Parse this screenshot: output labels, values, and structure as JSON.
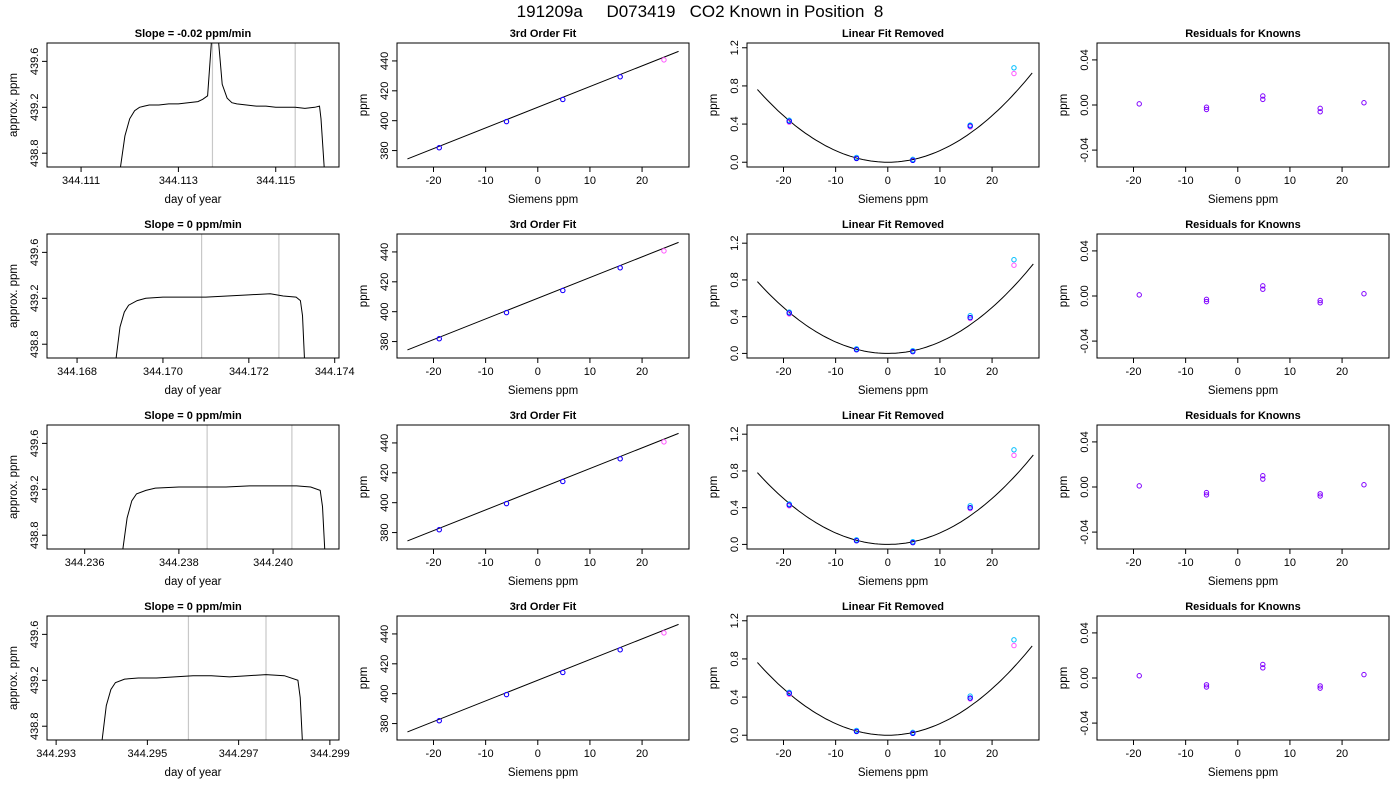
{
  "figure": {
    "title": "191209a     D073419   CO2 Known in Position  8",
    "colors": {
      "trace": "#000000",
      "vline": "#c8c8c8",
      "cyan": "#00bfff",
      "magenta": "#ff55ff",
      "blue": "#0000ff",
      "purple": "#8000ff"
    }
  },
  "chart_data": [
    {
      "type": "line",
      "row": 1,
      "title": "Slope =  -0.02  ppm/min",
      "xlabel": "day of year",
      "ylabel": "approx. ppm",
      "xlim": [
        344.1103,
        344.1163
      ],
      "ylim": [
        438.68,
        439.76
      ],
      "xticks": [
        344.111,
        344.113,
        344.115
      ],
      "xtick_labels": [
        "344.111",
        "344.113",
        "344.115"
      ],
      "yticks": [
        438.8,
        439.2,
        439.6
      ],
      "ytick_labels": [
        "438.8",
        "439.2",
        "439.6"
      ],
      "vlines": [
        344.1137,
        344.1154
      ],
      "x": [
        344.1118,
        344.1119,
        344.112,
        344.1121,
        344.1122,
        344.1123,
        344.1124,
        344.1126,
        344.1128,
        344.113,
        344.1132,
        344.1134,
        344.1135,
        344.1136,
        344.1137,
        344.1138,
        344.1139,
        344.114,
        344.1141,
        344.1142,
        344.1144,
        344.1146,
        344.1148,
        344.115,
        344.1152,
        344.1154,
        344.1156,
        344.1158,
        344.1159,
        344.11593,
        344.116
      ],
      "y": [
        438.65,
        438.95,
        439.1,
        439.17,
        439.2,
        439.21,
        439.22,
        439.22,
        439.23,
        439.23,
        439.24,
        439.25,
        439.27,
        439.3,
        439.9,
        439.9,
        439.4,
        439.28,
        439.24,
        439.23,
        439.22,
        439.21,
        439.21,
        439.2,
        439.2,
        439.2,
        439.19,
        439.2,
        439.21,
        439.1,
        438.65
      ]
    },
    {
      "type": "line",
      "row": 2,
      "title": "Slope =  0  ppm/min",
      "xlabel": "day of year",
      "ylabel": "approx. ppm",
      "xlim": [
        344.1673,
        344.1741
      ],
      "ylim": [
        438.68,
        439.76
      ],
      "xticks": [
        344.168,
        344.17,
        344.172,
        344.174
      ],
      "xtick_labels": [
        "344.168",
        "344.170",
        "344.172",
        "344.174"
      ],
      "yticks": [
        438.8,
        439.2,
        439.6
      ],
      "ytick_labels": [
        "438.8",
        "439.2",
        "439.6"
      ],
      "vlines": [
        344.1709,
        344.1727
      ],
      "x": [
        344.1689,
        344.169,
        344.1691,
        344.1692,
        344.1694,
        344.1696,
        344.17,
        344.1705,
        344.171,
        344.1715,
        344.172,
        344.1725,
        344.1728,
        344.1731,
        344.1732,
        344.17325,
        344.1733
      ],
      "y": [
        438.65,
        438.95,
        439.08,
        439.14,
        439.18,
        439.2,
        439.21,
        439.21,
        439.21,
        439.22,
        439.23,
        439.24,
        439.22,
        439.21,
        439.18,
        439.05,
        438.65
      ]
    },
    {
      "type": "line",
      "row": 3,
      "title": "Slope =  0  ppm/min",
      "xlabel": "day of year",
      "ylabel": "approx. ppm",
      "xlim": [
        344.2352,
        344.2414
      ],
      "ylim": [
        438.68,
        439.76
      ],
      "xticks": [
        344.236,
        344.238,
        344.24
      ],
      "xtick_labels": [
        "344.236",
        "344.238",
        "344.240"
      ],
      "yticks": [
        438.8,
        439.2,
        439.6
      ],
      "ytick_labels": [
        "438.8",
        "439.2",
        "439.6"
      ],
      "vlines": [
        344.2386,
        344.2404
      ],
      "x": [
        344.2368,
        344.2369,
        344.237,
        344.2371,
        344.2373,
        344.2375,
        344.238,
        344.2385,
        344.239,
        344.2395,
        344.24,
        344.2405,
        344.2408,
        344.241,
        344.24105,
        344.2411
      ],
      "y": [
        438.65,
        438.95,
        439.1,
        439.16,
        439.19,
        439.21,
        439.22,
        439.22,
        439.22,
        439.23,
        439.23,
        439.23,
        439.22,
        439.19,
        439.05,
        438.65
      ]
    },
    {
      "type": "line",
      "row": 4,
      "title": "Slope =  0  ppm/min",
      "xlabel": "day of year",
      "ylabel": "approx. ppm",
      "xlim": [
        344.2928,
        344.2992
      ],
      "ylim": [
        438.68,
        439.76
      ],
      "xticks": [
        344.293,
        344.295,
        344.297,
        344.299
      ],
      "xtick_labels": [
        "344.293",
        "344.295",
        "344.297",
        "344.299"
      ],
      "yticks": [
        438.8,
        439.2,
        439.6
      ],
      "ytick_labels": [
        "438.8",
        "439.2",
        "439.6"
      ],
      "vlines": [
        344.2959,
        344.2976
      ],
      "x": [
        344.294,
        344.2941,
        344.2942,
        344.2943,
        344.2945,
        344.2948,
        344.2952,
        344.2956,
        344.296,
        344.2964,
        344.2968,
        344.2972,
        344.2976,
        344.298,
        344.2983,
        344.29835,
        344.2984
      ],
      "y": [
        438.65,
        438.98,
        439.12,
        439.18,
        439.21,
        439.22,
        439.22,
        439.23,
        439.24,
        439.24,
        439.23,
        439.24,
        439.25,
        439.24,
        439.2,
        439.05,
        438.65
      ]
    },
    {
      "type": "scatter",
      "row": 1,
      "title": "3rd Order Fit",
      "xlabel": "Siemens ppm",
      "ylabel": "ppm",
      "xlim": [
        -27,
        29
      ],
      "ylim": [
        369,
        452
      ],
      "xticks": [
        -20,
        -10,
        0,
        10,
        20
      ],
      "yticks": [
        380,
        400,
        420,
        440
      ],
      "fit_line": [
        [
          -25,
          374.4
        ],
        [
          27,
          446.4
        ]
      ],
      "series": [
        {
          "color": "magenta",
          "x": [
            -18.9,
            -6.0,
            4.8,
            15.8,
            24.2
          ],
          "y": [
            381.9,
            399.4,
            414.2,
            429.4,
            440.7
          ]
        },
        {
          "color": "blue",
          "x": [
            -18.9,
            -6.0,
            4.8,
            15.8
          ],
          "y": [
            381.9,
            399.4,
            414.2,
            429.4
          ]
        }
      ]
    },
    {
      "type": "scatter",
      "row": 2,
      "title": "3rd Order Fit",
      "xlabel": "Siemens ppm",
      "ylabel": "ppm",
      "xlim": [
        -27,
        29
      ],
      "ylim": [
        369,
        452
      ],
      "xticks": [
        -20,
        -10,
        0,
        10,
        20
      ],
      "yticks": [
        380,
        400,
        420,
        440
      ],
      "fit_line": [
        [
          -25,
          374.4
        ],
        [
          27,
          446.4
        ]
      ],
      "series": [
        {
          "color": "magenta",
          "x": [
            -18.9,
            -6.0,
            4.8,
            15.8,
            24.2
          ],
          "y": [
            381.9,
            399.4,
            414.2,
            429.4,
            440.7
          ]
        },
        {
          "color": "blue",
          "x": [
            -18.9,
            -6.0,
            4.8,
            15.8
          ],
          "y": [
            381.9,
            399.4,
            414.2,
            429.4
          ]
        }
      ]
    },
    {
      "type": "scatter",
      "row": 3,
      "title": "3rd Order Fit",
      "xlabel": "Siemens ppm",
      "ylabel": "ppm",
      "xlim": [
        -27,
        29
      ],
      "ylim": [
        369,
        452
      ],
      "xticks": [
        -20,
        -10,
        0,
        10,
        20
      ],
      "yticks": [
        380,
        400,
        420,
        440
      ],
      "fit_line": [
        [
          -25,
          374.4
        ],
        [
          27,
          446.4
        ]
      ],
      "series": [
        {
          "color": "magenta",
          "x": [
            -18.9,
            -6.0,
            4.8,
            15.8,
            24.2
          ],
          "y": [
            381.9,
            399.4,
            414.2,
            429.4,
            440.7
          ]
        },
        {
          "color": "blue",
          "x": [
            -18.9,
            -6.0,
            4.8,
            15.8
          ],
          "y": [
            381.9,
            399.4,
            414.2,
            429.4
          ]
        }
      ]
    },
    {
      "type": "scatter",
      "row": 4,
      "title": "3rd Order Fit",
      "xlabel": "Siemens ppm",
      "ylabel": "ppm",
      "xlim": [
        -27,
        29
      ],
      "ylim": [
        369,
        452
      ],
      "xticks": [
        -20,
        -10,
        0,
        10,
        20
      ],
      "yticks": [
        380,
        400,
        420,
        440
      ],
      "fit_line": [
        [
          -25,
          374.4
        ],
        [
          27,
          446.4
        ]
      ],
      "series": [
        {
          "color": "magenta",
          "x": [
            -18.9,
            -6.0,
            4.8,
            15.8,
            24.2
          ],
          "y": [
            381.9,
            399.4,
            414.2,
            429.4,
            440.7
          ]
        },
        {
          "color": "blue",
          "x": [
            -18.9,
            -6.0,
            4.8,
            15.8
          ],
          "y": [
            381.9,
            399.4,
            414.2,
            429.4
          ]
        }
      ]
    },
    {
      "type": "scatter",
      "row": 1,
      "title": "Linear Fit Removed",
      "xlabel": "Siemens ppm",
      "ylabel": "ppm",
      "xlim": [
        -27,
        29
      ],
      "ylim": [
        -0.05,
        1.25
      ],
      "xticks": [
        -20,
        -10,
        0,
        10,
        20
      ],
      "yticks": [
        0.0,
        0.4,
        0.8,
        1.2
      ],
      "ytick_labels": [
        "0.0",
        "0.4",
        "0.8",
        "1.2"
      ],
      "curve_coef": 0.00122,
      "curve_xrange": [
        -25,
        27.7
      ],
      "series": [
        {
          "color": "cyan",
          "x": [
            -18.9,
            -6.0,
            4.8,
            15.8,
            24.2
          ],
          "y": [
            0.44,
            0.05,
            0.03,
            0.39,
            0.99
          ]
        },
        {
          "color": "magenta",
          "x": [
            -18.9,
            -6.0,
            4.8,
            15.8,
            24.2
          ],
          "y": [
            0.42,
            0.04,
            0.02,
            0.37,
            0.93
          ]
        },
        {
          "color": "blue",
          "x": [
            -18.9,
            -6.0,
            4.8,
            15.8
          ],
          "y": [
            0.43,
            0.04,
            0.02,
            0.38
          ]
        }
      ]
    },
    {
      "type": "scatter",
      "row": 2,
      "title": "Linear Fit Removed",
      "xlabel": "Siemens ppm",
      "ylabel": "ppm",
      "xlim": [
        -27,
        29
      ],
      "ylim": [
        -0.05,
        1.3
      ],
      "xticks": [
        -20,
        -10,
        0,
        10,
        20
      ],
      "yticks": [
        0.0,
        0.4,
        0.8,
        1.2
      ],
      "ytick_labels": [
        "0.0",
        "0.4",
        "0.8",
        "1.2"
      ],
      "curve_coef": 0.00125,
      "curve_xrange": [
        -25,
        27.9
      ],
      "series": [
        {
          "color": "cyan",
          "x": [
            -18.9,
            -6.0,
            4.8,
            15.8,
            24.2
          ],
          "y": [
            0.45,
            0.05,
            0.03,
            0.41,
            1.02
          ]
        },
        {
          "color": "magenta",
          "x": [
            -18.9,
            -6.0,
            4.8,
            15.8,
            24.2
          ],
          "y": [
            0.43,
            0.04,
            0.02,
            0.38,
            0.96
          ]
        },
        {
          "color": "blue",
          "x": [
            -18.9,
            -6.0,
            4.8,
            15.8
          ],
          "y": [
            0.44,
            0.04,
            0.02,
            0.39
          ]
        }
      ]
    },
    {
      "type": "scatter",
      "row": 3,
      "title": "Linear Fit Removed",
      "xlabel": "Siemens ppm",
      "ylabel": "ppm",
      "xlim": [
        -27,
        29
      ],
      "ylim": [
        -0.05,
        1.3
      ],
      "xticks": [
        -20,
        -10,
        0,
        10,
        20
      ],
      "yticks": [
        0.0,
        0.4,
        0.8,
        1.2
      ],
      "ytick_labels": [
        "0.0",
        "0.4",
        "0.8",
        "1.2"
      ],
      "curve_coef": 0.00125,
      "curve_xrange": [
        -25,
        27.9
      ],
      "series": [
        {
          "color": "cyan",
          "x": [
            -18.9,
            -6.0,
            4.8,
            15.8,
            24.2
          ],
          "y": [
            0.44,
            0.05,
            0.03,
            0.42,
            1.03
          ]
        },
        {
          "color": "magenta",
          "x": [
            -18.9,
            -6.0,
            4.8,
            15.8,
            24.2
          ],
          "y": [
            0.42,
            0.04,
            0.02,
            0.39,
            0.97
          ]
        },
        {
          "color": "blue",
          "x": [
            -18.9,
            -6.0,
            4.8,
            15.8
          ],
          "y": [
            0.43,
            0.04,
            0.02,
            0.4
          ]
        }
      ]
    },
    {
      "type": "scatter",
      "row": 4,
      "title": "Linear Fit Removed",
      "xlabel": "Siemens ppm",
      "ylabel": "ppm",
      "xlim": [
        -27,
        29
      ],
      "ylim": [
        -0.05,
        1.25
      ],
      "xticks": [
        -20,
        -10,
        0,
        10,
        20
      ],
      "yticks": [
        0.0,
        0.4,
        0.8,
        1.2
      ],
      "ytick_labels": [
        "0.0",
        "0.4",
        "0.8",
        "1.2"
      ],
      "curve_coef": 0.00122,
      "curve_xrange": [
        -25,
        27.7
      ],
      "series": [
        {
          "color": "cyan",
          "x": [
            -18.9,
            -6.0,
            4.8,
            15.8,
            24.2
          ],
          "y": [
            0.45,
            0.05,
            0.03,
            0.41,
            1.0
          ]
        },
        {
          "color": "magenta",
          "x": [
            -18.9,
            -6.0,
            4.8,
            15.8,
            24.2
          ],
          "y": [
            0.43,
            0.04,
            0.02,
            0.38,
            0.94
          ]
        },
        {
          "color": "blue",
          "x": [
            -18.9,
            -6.0,
            4.8,
            15.8
          ],
          "y": [
            0.44,
            0.04,
            0.02,
            0.39
          ]
        }
      ]
    },
    {
      "type": "scatter",
      "row": 1,
      "title": "Residuals for Knowns",
      "xlabel": "Siemens ppm",
      "ylabel": "ppm",
      "xlim": [
        -27,
        29
      ],
      "ylim": [
        -0.055,
        0.055
      ],
      "xticks": [
        -20,
        -10,
        0,
        10,
        20
      ],
      "yticks": [
        -0.04,
        0.0,
        0.04
      ],
      "ytick_labels": [
        "-0.04",
        "0.00",
        "0.04"
      ],
      "series": [
        {
          "color": "purple",
          "x": [
            -18.9,
            -6.0,
            -6.0,
            4.8,
            4.8,
            15.8,
            15.8,
            24.2
          ],
          "y": [
            0.001,
            -0.002,
            -0.004,
            0.008,
            0.005,
            -0.003,
            -0.006,
            0.002
          ]
        }
      ]
    },
    {
      "type": "scatter",
      "row": 2,
      "title": "Residuals for Knowns",
      "xlabel": "Siemens ppm",
      "ylabel": "ppm",
      "xlim": [
        -27,
        29
      ],
      "ylim": [
        -0.055,
        0.055
      ],
      "xticks": [
        -20,
        -10,
        0,
        10,
        20
      ],
      "yticks": [
        -0.04,
        0.0,
        0.04
      ],
      "ytick_labels": [
        "-0.04",
        "0.00",
        "0.04"
      ],
      "series": [
        {
          "color": "purple",
          "x": [
            -18.9,
            -6.0,
            -6.0,
            4.8,
            4.8,
            15.8,
            15.8,
            24.2
          ],
          "y": [
            0.001,
            -0.003,
            -0.005,
            0.009,
            0.006,
            -0.004,
            -0.006,
            0.002
          ]
        }
      ]
    },
    {
      "type": "scatter",
      "row": 3,
      "title": "Residuals for Knowns",
      "xlabel": "Siemens ppm",
      "ylabel": "ppm",
      "xlim": [
        -27,
        29
      ],
      "ylim": [
        -0.055,
        0.055
      ],
      "xticks": [
        -20,
        -10,
        0,
        10,
        20
      ],
      "yticks": [
        -0.04,
        0.0,
        0.04
      ],
      "ytick_labels": [
        "-0.04",
        "0.00",
        "0.04"
      ],
      "series": [
        {
          "color": "purple",
          "x": [
            -18.9,
            -6.0,
            -6.0,
            4.8,
            4.8,
            15.8,
            15.8,
            24.2
          ],
          "y": [
            0.001,
            -0.005,
            -0.007,
            0.01,
            0.007,
            -0.006,
            -0.008,
            0.002
          ]
        }
      ]
    },
    {
      "type": "scatter",
      "row": 4,
      "title": "Residuals for Knowns",
      "xlabel": "Siemens ppm",
      "ylabel": "ppm",
      "xlim": [
        -27,
        29
      ],
      "ylim": [
        -0.055,
        0.055
      ],
      "xticks": [
        -20,
        -10,
        0,
        10,
        20
      ],
      "yticks": [
        -0.04,
        0.0,
        0.04
      ],
      "ytick_labels": [
        "-0.04",
        "0.00",
        "0.04"
      ],
      "series": [
        {
          "color": "purple",
          "x": [
            -18.9,
            -6.0,
            -6.0,
            4.8,
            4.8,
            15.8,
            15.8,
            24.2
          ],
          "y": [
            0.002,
            -0.006,
            -0.008,
            0.012,
            0.009,
            -0.007,
            -0.009,
            0.003
          ]
        }
      ]
    }
  ]
}
